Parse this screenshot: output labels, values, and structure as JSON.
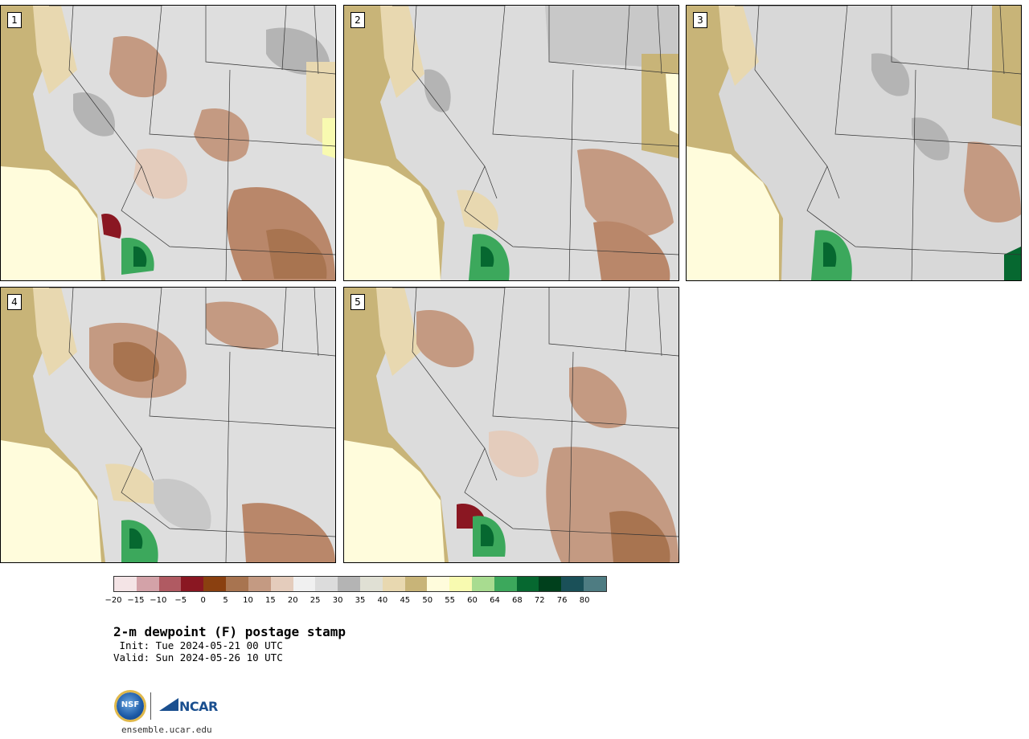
{
  "panels": [
    {
      "label": "1"
    },
    {
      "label": "2"
    },
    {
      "label": "3"
    },
    {
      "label": "4"
    },
    {
      "label": "5"
    }
  ],
  "colorbar": {
    "colors": [
      "#f4e4e6",
      "#d3a2a8",
      "#b05a62",
      "#8a1722",
      "#8a4010",
      "#a87450",
      "#c49a82",
      "#e4ccbc",
      "#f0f0f0",
      "#dcdcdc",
      "#b4b4b4",
      "#e0e0d4",
      "#e8d8b0",
      "#c8b478",
      "#fffcdc",
      "#f8fab0",
      "#a8dc90",
      "#3ca85c",
      "#066830",
      "#00401c",
      "#1a5058",
      "#4e7c82"
    ],
    "tick_labels": [
      "−20",
      "−15",
      "−10",
      "−5",
      "0",
      "5",
      "10",
      "15",
      "20",
      "25",
      "30",
      "35",
      "40",
      "45",
      "50",
      "55",
      "60",
      "64",
      "68",
      "72",
      "76",
      "80"
    ]
  },
  "title": "2-m dewpoint (F) postage stamp",
  "init": " Init: Tue 2024-05-21 00 UTC",
  "valid": "Valid: Sun 2024-05-26 10 UTC",
  "logos": {
    "nsf": "NSF",
    "ncar": "NCAR"
  },
  "website": "ensemble.ucar.edu"
}
